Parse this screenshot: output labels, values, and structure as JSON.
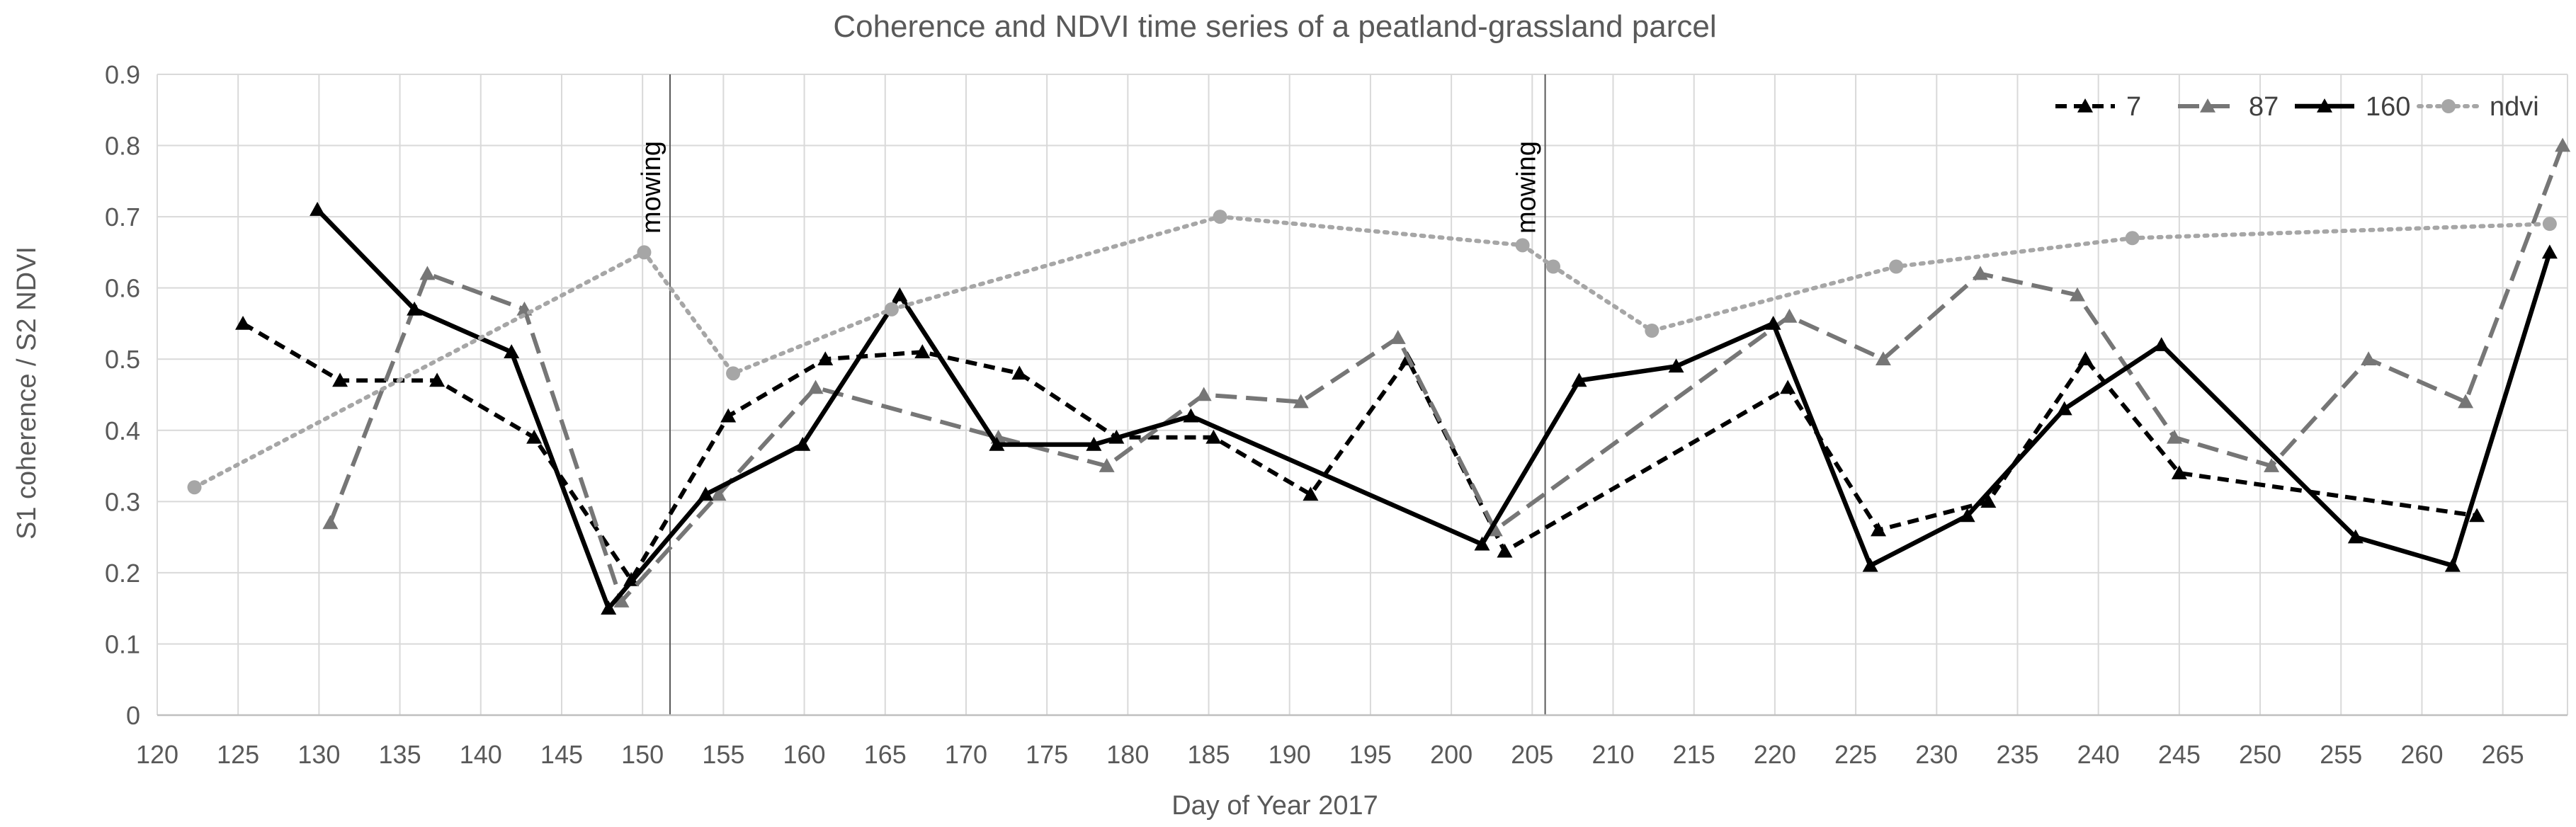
{
  "chart_data": {
    "type": "line",
    "title": "Coherence and NDVI time series of a peatland-grassland parcel",
    "xlabel": "Day of Year 2017",
    "ylabel": "S1 coherence / S2 NDVI",
    "xlim": [
      120,
      269
    ],
    "ylim": [
      0,
      0.9
    ],
    "x_ticks": [
      120,
      125,
      130,
      135,
      140,
      145,
      150,
      155,
      160,
      165,
      170,
      175,
      180,
      185,
      190,
      195,
      200,
      205,
      210,
      215,
      220,
      225,
      230,
      235,
      240,
      245,
      250,
      255,
      260,
      265
    ],
    "y_ticks": [
      0,
      0.1,
      0.2,
      0.3,
      0.4,
      0.5,
      0.6,
      0.7,
      0.8,
      0.9
    ],
    "y_tick_labels": [
      "0",
      "0.1",
      "0.2",
      "0.3",
      "0.4",
      "0.5",
      "0.6",
      "0.7",
      "0.8",
      "0.9"
    ],
    "grid": true,
    "legend_position": "top-right",
    "annotations": [
      {
        "x": 151.7,
        "text": "mowing"
      },
      {
        "x": 205.8,
        "text": "mowing"
      }
    ],
    "series": [
      {
        "name": "7",
        "color": "#000000",
        "dash": "short-dash",
        "marker": "triangle",
        "points": [
          [
            125.3,
            0.55
          ],
          [
            131.3,
            0.47
          ],
          [
            137.3,
            0.47
          ],
          [
            143.3,
            0.39
          ],
          [
            149.3,
            0.19
          ],
          [
            155.3,
            0.42
          ],
          [
            161.3,
            0.5
          ],
          [
            167.3,
            0.51
          ],
          [
            173.3,
            0.48
          ],
          [
            179.3,
            0.39
          ],
          [
            185.3,
            0.39
          ],
          [
            191.3,
            0.31
          ],
          [
            197.3,
            0.5
          ],
          [
            203.3,
            0.23
          ],
          [
            220.8,
            0.46
          ],
          [
            226.4,
            0.26
          ],
          [
            233.2,
            0.3
          ],
          [
            239.2,
            0.5
          ],
          [
            245,
            0.34
          ],
          [
            263.4,
            0.28
          ]
        ]
      },
      {
        "name": "87",
        "color": "#767676",
        "dash": "long-dash",
        "marker": "triangle",
        "points": [
          [
            130.7,
            0.27
          ],
          [
            136.7,
            0.62
          ],
          [
            142.7,
            0.57
          ],
          [
            148.7,
            0.16
          ],
          [
            154.7,
            0.31
          ],
          [
            160.7,
            0.46
          ],
          [
            172,
            0.39
          ],
          [
            178.7,
            0.35
          ],
          [
            184.7,
            0.45
          ],
          [
            190.7,
            0.44
          ],
          [
            196.7,
            0.53
          ],
          [
            202.7,
            0.26
          ],
          [
            220.9,
            0.56
          ],
          [
            226.7,
            0.5
          ],
          [
            232.7,
            0.62
          ],
          [
            238.7,
            0.59
          ],
          [
            244.7,
            0.39
          ],
          [
            250.7,
            0.35
          ],
          [
            256.7,
            0.5
          ],
          [
            262.7,
            0.44
          ],
          [
            268.7,
            0.8
          ]
        ]
      },
      {
        "name": "160",
        "color": "#000000",
        "dash": "solid",
        "marker": "triangle",
        "points": [
          [
            129.9,
            0.71
          ],
          [
            135.9,
            0.57
          ],
          [
            141.9,
            0.51
          ],
          [
            147.9,
            0.15
          ],
          [
            153.9,
            0.31
          ],
          [
            159.9,
            0.38
          ],
          [
            165.9,
            0.59
          ],
          [
            171.9,
            0.38
          ],
          [
            177.9,
            0.38
          ],
          [
            183.9,
            0.42
          ],
          [
            201.9,
            0.24
          ],
          [
            207.9,
            0.47
          ],
          [
            213.9,
            0.49
          ],
          [
            219.9,
            0.55
          ],
          [
            225.9,
            0.21
          ],
          [
            231.9,
            0.28
          ],
          [
            237.9,
            0.43
          ],
          [
            243.9,
            0.52
          ],
          [
            255.9,
            0.25
          ],
          [
            261.9,
            0.21
          ],
          [
            267.9,
            0.65
          ]
        ]
      },
      {
        "name": "ndvi",
        "color": "#a6a6a6",
        "dash": "dotted",
        "marker": "circle",
        "points": [
          [
            122.3,
            0.32
          ],
          [
            150.1,
            0.65
          ],
          [
            155.6,
            0.48
          ],
          [
            165.4,
            0.57
          ],
          [
            185.7,
            0.7
          ],
          [
            204.4,
            0.66
          ],
          [
            206.3,
            0.63
          ],
          [
            212.4,
            0.54
          ],
          [
            227.5,
            0.63
          ],
          [
            242.1,
            0.67
          ],
          [
            267.9,
            0.69
          ]
        ]
      }
    ]
  }
}
